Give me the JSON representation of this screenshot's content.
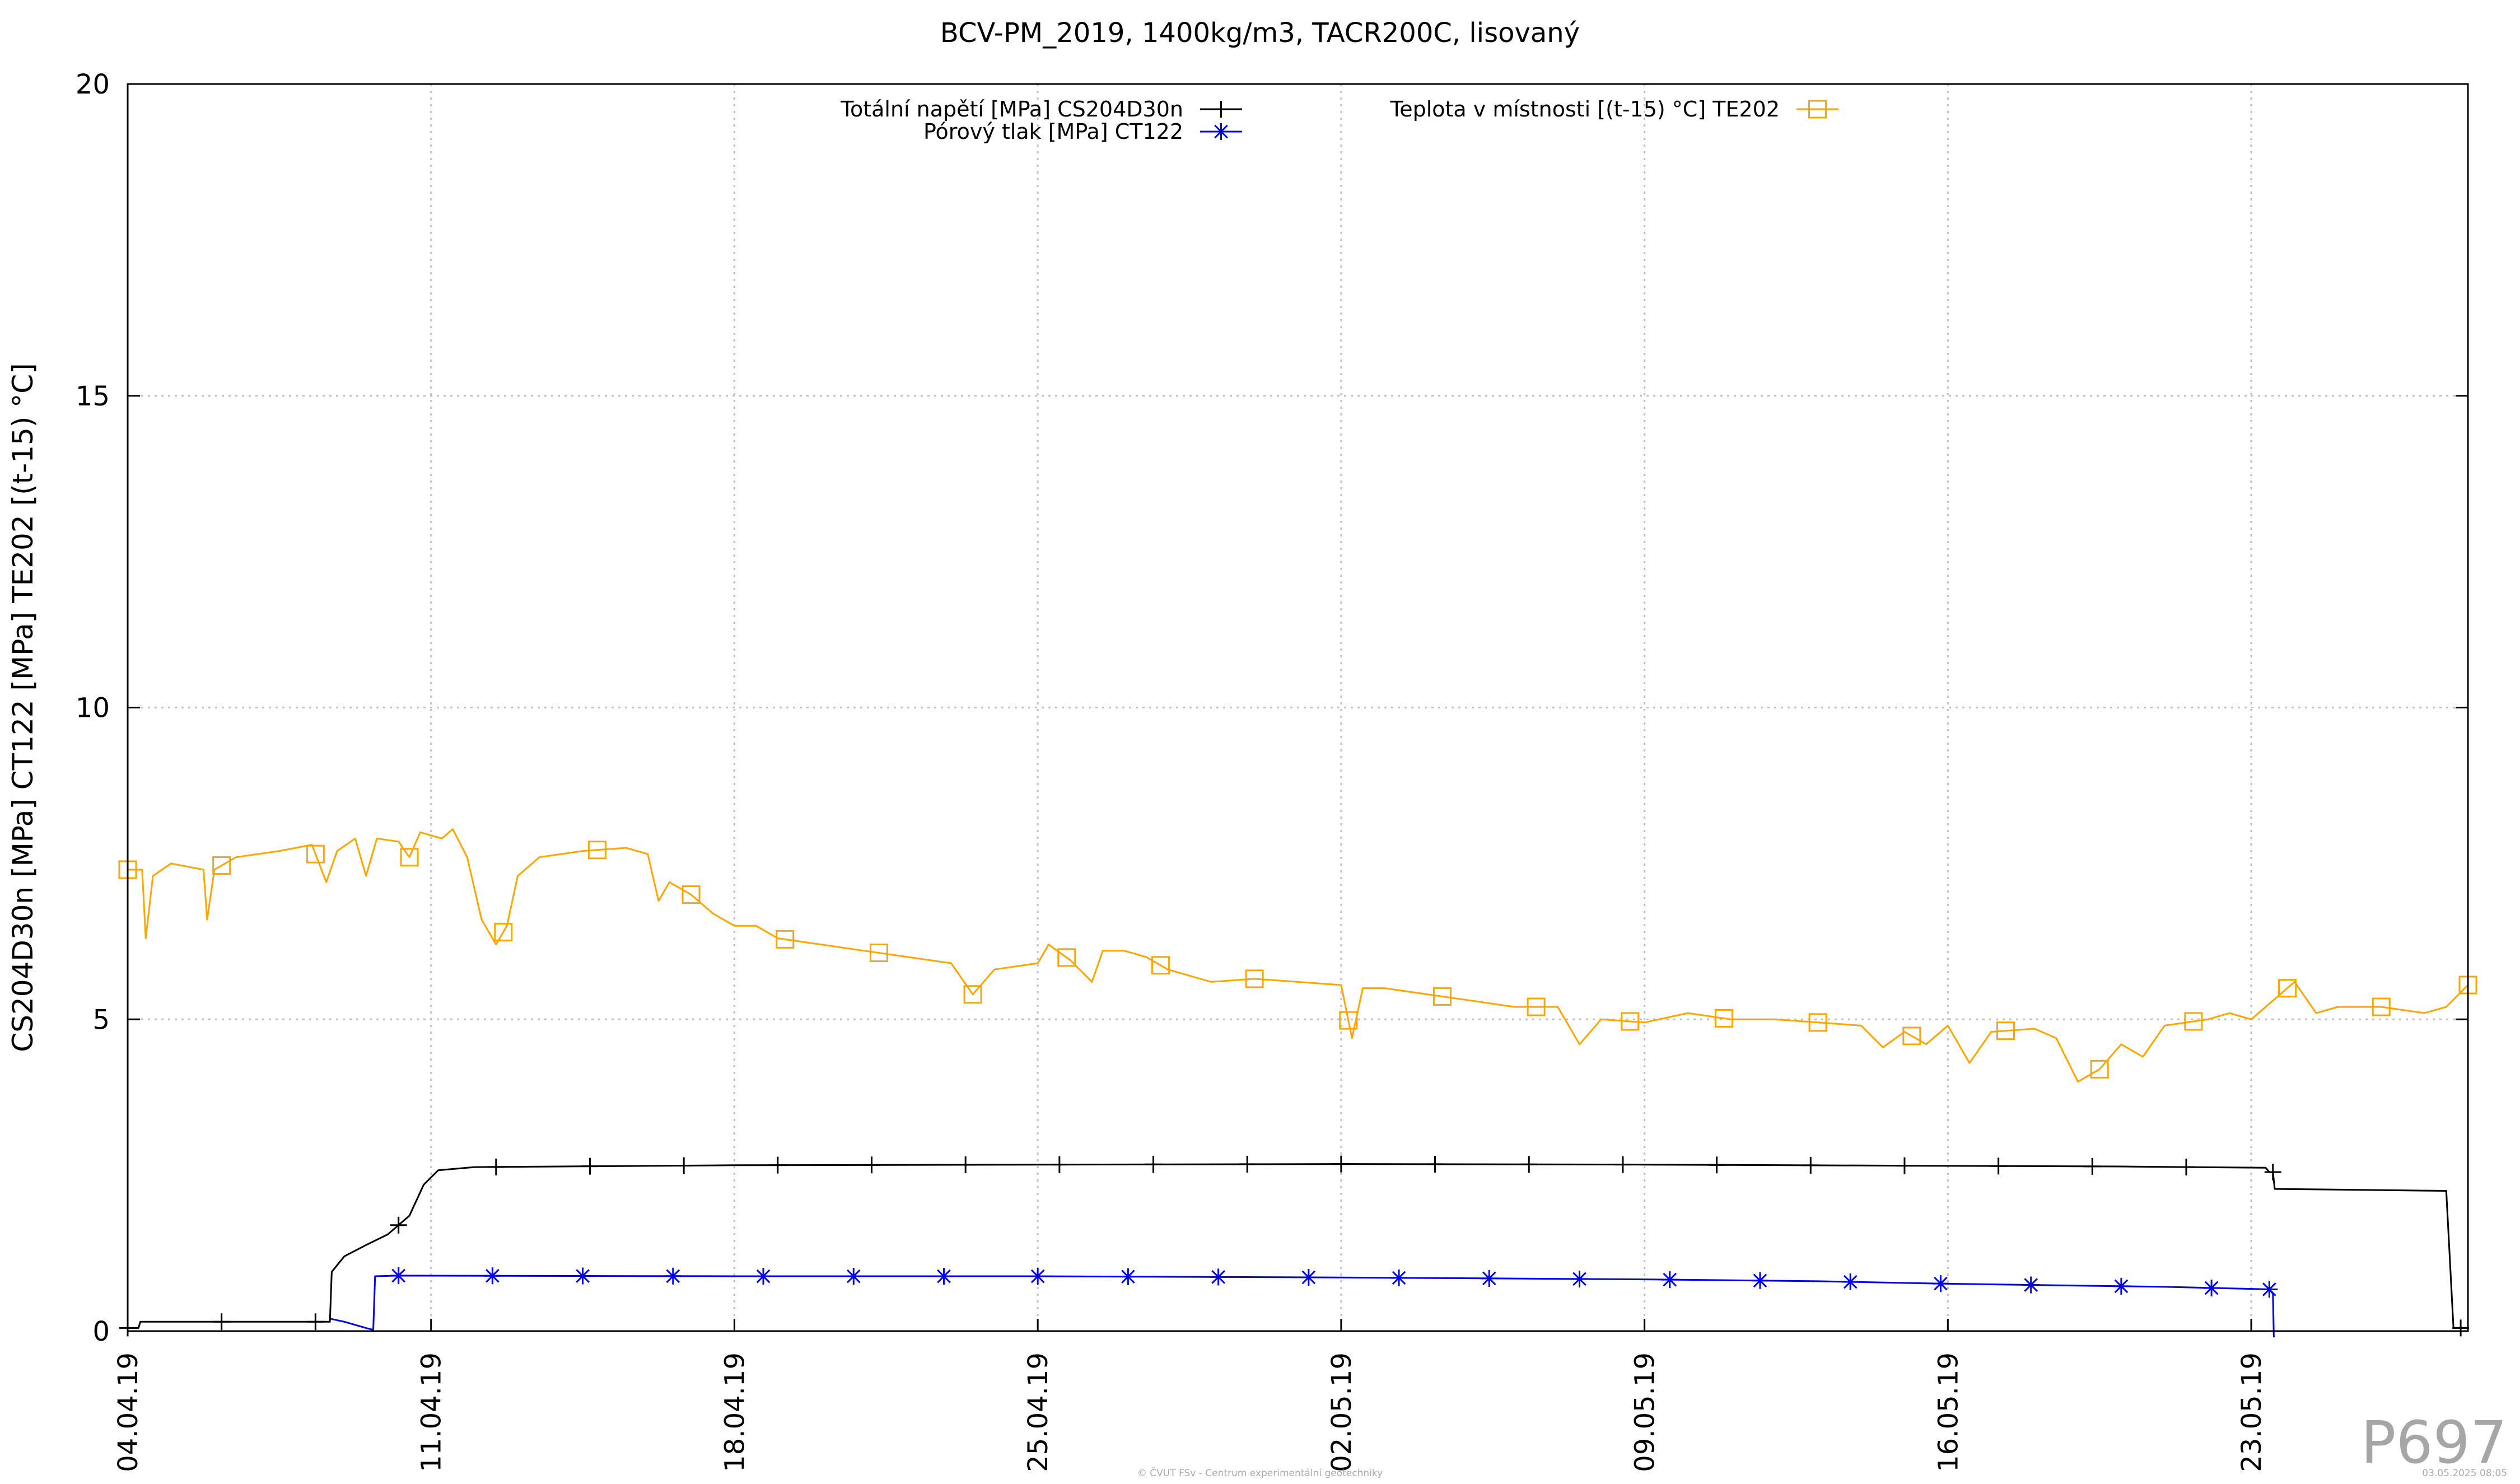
{
  "watermark": "P697",
  "footer": {
    "credit": "© ČVUT FSv - Centrum experimentální geotechniky",
    "date": "03.05.2025 08:05"
  },
  "colors": {
    "total_stress": "#000000",
    "pore_pressure": "#0000ee",
    "temperature": "#ffa500",
    "grid": "#c0c0c0"
  },
  "chart_data": {
    "type": "line",
    "title": "BCV-PM_2019, 1400kg/m3, TACR200C, lisovaný",
    "xlabel": "",
    "ylabel": "CS204D30n [MPa] CT122 [MPa] TE202 [(t-15) °C]",
    "xlim": [
      "2019-04-04",
      "2019-05-28"
    ],
    "ylim": [
      0,
      20
    ],
    "yticks": [
      0,
      5,
      10,
      15,
      20
    ],
    "xticks": [
      {
        "date": "2019-04-04",
        "label": "04.04.19"
      },
      {
        "date": "2019-04-11",
        "label": "11.04.19"
      },
      {
        "date": "2019-04-18",
        "label": "18.04.19"
      },
      {
        "date": "2019-04-25",
        "label": "25.04.19"
      },
      {
        "date": "2019-05-02",
        "label": "02.05.19"
      },
      {
        "date": "2019-05-09",
        "label": "09.05.19"
      },
      {
        "date": "2019-05-16",
        "label": "16.05.19"
      },
      {
        "date": "2019-05-23",
        "label": "23.05.19"
      }
    ],
    "grid": true,
    "legend_position": "top",
    "series": [
      {
        "name": "Totální napětí [MPa] CS204D30n",
        "marker": "plus",
        "color": "#000000",
        "points": [
          [
            "2019-04-03 12:00",
            0.05
          ],
          [
            "2019-04-04 06:00",
            0.05
          ],
          [
            "2019-04-04 07:00",
            0.15
          ],
          [
            "2019-04-06 00:00",
            0.15
          ],
          [
            "2019-04-08 12:00",
            0.15
          ],
          [
            "2019-04-08 16:00",
            0.15
          ],
          [
            "2019-04-08 17:00",
            0.95
          ],
          [
            "2019-04-09 00:00",
            1.2
          ],
          [
            "2019-04-09 12:00",
            1.38
          ],
          [
            "2019-04-10 00:00",
            1.55
          ],
          [
            "2019-04-10 12:00",
            1.85
          ],
          [
            "2019-04-10 20:00",
            2.35
          ],
          [
            "2019-04-11 04:00",
            2.58
          ],
          [
            "2019-04-12 00:00",
            2.63
          ],
          [
            "2019-04-14 00:00",
            2.64
          ],
          [
            "2019-04-18 00:00",
            2.66
          ],
          [
            "2019-04-25 00:00",
            2.67
          ],
          [
            "2019-05-02 00:00",
            2.68
          ],
          [
            "2019-05-09 00:00",
            2.67
          ],
          [
            "2019-05-16 00:00",
            2.65
          ],
          [
            "2019-05-20 00:00",
            2.64
          ],
          [
            "2019-05-23 08:00",
            2.62
          ],
          [
            "2019-05-23 10:00",
            2.55
          ],
          [
            "2019-05-23 12:00",
            2.55
          ],
          [
            "2019-05-23 13:00",
            2.28
          ],
          [
            "2019-05-27 12:00",
            2.25
          ],
          [
            "2019-05-27 16:00",
            0.05
          ],
          [
            "2019-05-28 00:00",
            0.05
          ]
        ],
        "markers": [
          "2019-04-04 00:00",
          "2019-04-06 04:00",
          "2019-04-08 08:00",
          "2019-04-10 06:00",
          "2019-04-12 12:00",
          "2019-04-14 16:00",
          "2019-04-16 20:00",
          "2019-04-19 00:00",
          "2019-04-21 04:00",
          "2019-04-23 08:00",
          "2019-04-25 12:00",
          "2019-04-27 16:00",
          "2019-04-29 20:00",
          "2019-05-02 00:00",
          "2019-05-04 04:00",
          "2019-05-06 08:00",
          "2019-05-08 12:00",
          "2019-05-10 16:00",
          "2019-05-12 20:00",
          "2019-05-15 00:00",
          "2019-05-17 04:00",
          "2019-05-19 08:00",
          "2019-05-21 12:00",
          "2019-05-23 12:00",
          "2019-05-27 20:00"
        ]
      },
      {
        "name": "Pórový tlak [MPa] CT122",
        "marker": "star",
        "color": "#0000ee",
        "points": [
          [
            "2019-04-08 16:00",
            0.2
          ],
          [
            "2019-04-09 00:00",
            0.15
          ],
          [
            "2019-04-09 12:00",
            0.05
          ],
          [
            "2019-04-09 16:00",
            0.02
          ],
          [
            "2019-04-09 17:00",
            0.88
          ],
          [
            "2019-04-10 06:00",
            0.89
          ],
          [
            "2019-04-18 00:00",
            0.88
          ],
          [
            "2019-04-25 00:00",
            0.88
          ],
          [
            "2019-05-02 00:00",
            0.86
          ],
          [
            "2019-05-09 00:00",
            0.83
          ],
          [
            "2019-05-13 00:00",
            0.8
          ],
          [
            "2019-05-16 00:00",
            0.76
          ],
          [
            "2019-05-19 00:00",
            0.73
          ],
          [
            "2019-05-21 00:00",
            0.71
          ],
          [
            "2019-05-23 10:00",
            0.67
          ],
          [
            "2019-05-23 12:00",
            0.6
          ],
          [
            "2019-05-23 12:30",
            -0.1
          ]
        ],
        "markers": [
          "2019-04-10 06:00",
          "2019-04-12 10:00",
          "2019-04-14 12:00",
          "2019-04-16 14:00",
          "2019-04-18 16:00",
          "2019-04-20 18:00",
          "2019-04-22 20:00",
          "2019-04-25 00:00",
          "2019-04-27 02:00",
          "2019-04-29 04:00",
          "2019-05-01 06:00",
          "2019-05-03 08:00",
          "2019-05-05 10:00",
          "2019-05-07 12:00",
          "2019-05-09 14:00",
          "2019-05-11 16:00",
          "2019-05-13 18:00",
          "2019-05-15 20:00",
          "2019-05-17 22:00",
          "2019-05-20 00:00",
          "2019-05-22 02:00",
          "2019-05-23 10:00"
        ]
      },
      {
        "name": "Teplota v místnosti [(t-15) °C] TE202",
        "marker": "square",
        "color": "#ffa500",
        "points": [
          [
            "2019-04-03 12:00",
            7.3
          ],
          [
            "2019-04-04 00:00",
            7.4
          ],
          [
            "2019-04-04 08:00",
            7.4
          ],
          [
            "2019-04-04 10:00",
            6.3
          ],
          [
            "2019-04-04 14:00",
            7.3
          ],
          [
            "2019-04-05 00:00",
            7.5
          ],
          [
            "2019-04-05 18:00",
            7.4
          ],
          [
            "2019-04-05 20:00",
            6.6
          ],
          [
            "2019-04-06 00:00",
            7.4
          ],
          [
            "2019-04-06 12:00",
            7.6
          ],
          [
            "2019-04-07 12:00",
            7.7
          ],
          [
            "2019-04-08 06:00",
            7.8
          ],
          [
            "2019-04-08 14:00",
            7.2
          ],
          [
            "2019-04-08 20:00",
            7.7
          ],
          [
            "2019-04-09 06:00",
            7.9
          ],
          [
            "2019-04-09 12:00",
            7.3
          ],
          [
            "2019-04-09 18:00",
            7.9
          ],
          [
            "2019-04-10 06:00",
            7.85
          ],
          [
            "2019-04-10 12:00",
            7.6
          ],
          [
            "2019-04-10 18:00",
            8.0
          ],
          [
            "2019-04-11 06:00",
            7.9
          ],
          [
            "2019-04-11 12:00",
            8.05
          ],
          [
            "2019-04-11 20:00",
            7.6
          ],
          [
            "2019-04-12 04:00",
            6.6
          ],
          [
            "2019-04-12 12:00",
            6.2
          ],
          [
            "2019-04-12 18:00",
            6.5
          ],
          [
            "2019-04-13 00:00",
            7.3
          ],
          [
            "2019-04-13 12:00",
            7.6
          ],
          [
            "2019-04-14 12:00",
            7.7
          ],
          [
            "2019-04-15 12:00",
            7.75
          ],
          [
            "2019-04-16 00:00",
            7.65
          ],
          [
            "2019-04-16 06:00",
            6.9
          ],
          [
            "2019-04-16 12:00",
            7.2
          ],
          [
            "2019-04-17 00:00",
            7.0
          ],
          [
            "2019-04-17 12:00",
            6.7
          ],
          [
            "2019-04-18 00:00",
            6.5
          ],
          [
            "2019-04-18 12:00",
            6.5
          ],
          [
            "2019-04-19 00:00",
            6.3
          ],
          [
            "2019-04-20 00:00",
            6.2
          ],
          [
            "2019-04-21 00:00",
            6.1
          ],
          [
            "2019-04-22 00:00",
            6.0
          ],
          [
            "2019-04-23 00:00",
            5.9
          ],
          [
            "2019-04-23 12:00",
            5.4
          ],
          [
            "2019-04-24 00:00",
            5.8
          ],
          [
            "2019-04-25 00:00",
            5.9
          ],
          [
            "2019-04-25 06:00",
            6.2
          ],
          [
            "2019-04-25 18:00",
            5.95
          ],
          [
            "2019-04-26 06:00",
            5.6
          ],
          [
            "2019-04-26 12:00",
            6.1
          ],
          [
            "2019-04-27 00:00",
            6.1
          ],
          [
            "2019-04-27 12:00",
            6.0
          ],
          [
            "2019-04-28 00:00",
            5.8
          ],
          [
            "2019-04-29 00:00",
            5.6
          ],
          [
            "2019-04-30 00:00",
            5.65
          ],
          [
            "2019-05-01 00:00",
            5.6
          ],
          [
            "2019-05-02 00:00",
            5.55
          ],
          [
            "2019-05-02 06:00",
            4.7
          ],
          [
            "2019-05-02 12:00",
            5.5
          ],
          [
            "2019-05-03 00:00",
            5.5
          ],
          [
            "2019-05-04 00:00",
            5.4
          ],
          [
            "2019-05-05 00:00",
            5.3
          ],
          [
            "2019-05-06 00:00",
            5.2
          ],
          [
            "2019-05-07 00:00",
            5.2
          ],
          [
            "2019-05-07 12:00",
            4.6
          ],
          [
            "2019-05-08 00:00",
            5.0
          ],
          [
            "2019-05-09 00:00",
            4.95
          ],
          [
            "2019-05-10 00:00",
            5.1
          ],
          [
            "2019-05-11 00:00",
            5.0
          ],
          [
            "2019-05-12 00:00",
            5.0
          ],
          [
            "2019-05-13 00:00",
            4.95
          ],
          [
            "2019-05-14 00:00",
            4.9
          ],
          [
            "2019-05-14 12:00",
            4.55
          ],
          [
            "2019-05-15 00:00",
            4.8
          ],
          [
            "2019-05-15 12:00",
            4.6
          ],
          [
            "2019-05-16 00:00",
            4.9
          ],
          [
            "2019-05-16 12:00",
            4.3
          ],
          [
            "2019-05-17 00:00",
            4.8
          ],
          [
            "2019-05-18 00:00",
            4.85
          ],
          [
            "2019-05-18 12:00",
            4.7
          ],
          [
            "2019-05-19 00:00",
            4.0
          ],
          [
            "2019-05-19 12:00",
            4.2
          ],
          [
            "2019-05-20 00:00",
            4.6
          ],
          [
            "2019-05-20 12:00",
            4.4
          ],
          [
            "2019-05-21 00:00",
            4.9
          ],
          [
            "2019-05-22 00:00",
            5.0
          ],
          [
            "2019-05-22 12:00",
            5.1
          ],
          [
            "2019-05-23 00:00",
            5.0
          ],
          [
            "2019-05-23 12:00",
            5.3
          ],
          [
            "2019-05-24 00:00",
            5.6
          ],
          [
            "2019-05-24 12:00",
            5.1
          ],
          [
            "2019-05-25 00:00",
            5.2
          ],
          [
            "2019-05-26 00:00",
            5.2
          ],
          [
            "2019-05-27 00:00",
            5.1
          ],
          [
            "2019-05-27 12:00",
            5.2
          ],
          [
            "2019-05-28 00:00",
            5.55
          ]
        ],
        "markers": [
          "2019-04-04 00:00",
          "2019-04-06 04:00",
          "2019-04-08 08:00",
          "2019-04-10 12:00",
          "2019-04-12 16:00",
          "2019-04-14 20:00",
          "2019-04-17 00:00",
          "2019-04-19 04:00",
          "2019-04-21 08:00",
          "2019-04-23 12:00",
          "2019-04-25 16:00",
          "2019-04-27 20:00",
          "2019-04-30 00:00",
          "2019-05-02 04:00",
          "2019-05-04 08:00",
          "2019-05-06 12:00",
          "2019-05-08 16:00",
          "2019-05-10 20:00",
          "2019-05-13 00:00",
          "2019-05-15 04:00",
          "2019-05-17 08:00",
          "2019-05-19 12:00",
          "2019-05-21 16:00",
          "2019-05-23 20:00",
          "2019-05-26 00:00",
          "2019-05-28 00:00"
        ]
      }
    ]
  }
}
